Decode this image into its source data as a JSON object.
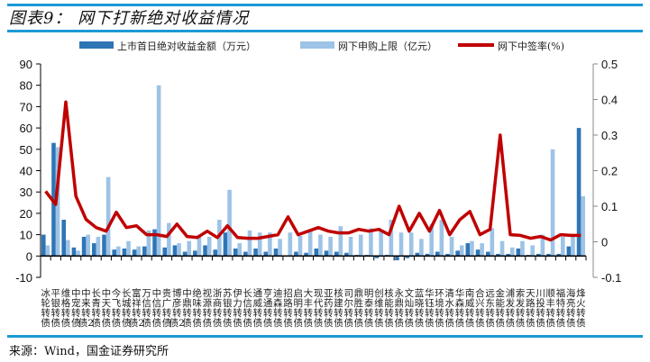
{
  "header": {
    "title": "图表9： 网下打新绝对收益情况"
  },
  "footer": {
    "source": "来源：Wind，国金证券研究所"
  },
  "colors": {
    "rule": "#1a9ad6",
    "dark_bar": "#2e75b6",
    "light_bar": "#9dc3e6",
    "line": "#c00000"
  },
  "chart_data": {
    "type": "bar+line",
    "title": "网下打新绝对收益情况",
    "legend": [
      {
        "name": "上市首日绝对收益金额（万元）",
        "type": "bar",
        "color": "#2e75b6",
        "axis": "left"
      },
      {
        "name": "网下申购上限（亿元）",
        "type": "bar",
        "color": "#9dc3e6",
        "axis": "left"
      },
      {
        "name": "网下中签率(%)",
        "type": "line",
        "color": "#c00000",
        "axis": "right"
      }
    ],
    "legend_position": "top",
    "grid": false,
    "left_axis": {
      "ylim": [
        -10,
        90
      ],
      "ticks": [
        -10,
        0,
        10,
        20,
        30,
        40,
        50,
        60,
        70,
        80,
        90
      ]
    },
    "right_axis": {
      "ylim": [
        -0.1,
        0.5
      ],
      "ticks": [
        "-0.1",
        "0",
        "0.1",
        "0.2",
        "0.3",
        "0.4",
        "0.5"
      ]
    },
    "categories": [
      "冰轮转债",
      "平银转债",
      "维格转债",
      "中宠转债",
      "中来转债2",
      "长青转债",
      "中天转债",
      "今飞转债",
      "长城转债",
      "富祥转债2",
      "万信转债",
      "中信转债",
      "贵广转债",
      "博彦转债2",
      "中鼎转债",
      "绝味转债",
      "视源转债",
      "浙商转债",
      "苏银转债",
      "伊力转债",
      "长信转债",
      "通威转债",
      "亨通转债",
      "迪森转债",
      "招路转债",
      "启明转债",
      "大丰转债",
      "现代转债",
      "亚药转债",
      "核建转债",
      "司尔转债",
      "鼎胜转债",
      "明泰转债",
      "创维转债",
      "核能转债",
      "永鼎转债",
      "文灿转债",
      "蓝晓转债",
      "华钰转债",
      "环境转债",
      "清水转债",
      "华森转债",
      "南威转债",
      "合兴转债",
      "远东转债",
      "金能转债",
      "浦发转债",
      "索发转债",
      "天路转债",
      "川投转债",
      "顺丰转债",
      "福特转债",
      "海亮转债",
      "烽火转债"
    ],
    "series": [
      {
        "name": "上市首日绝对收益金额（万元）",
        "values": [
          10,
          53,
          17,
          4,
          9,
          6,
          10,
          3,
          3.5,
          3,
          4.5,
          12.5,
          4,
          5,
          2,
          2.5,
          5,
          3,
          11,
          3.5,
          2,
          3.5,
          2,
          3.5,
          0,
          2,
          1.5,
          3.5,
          2.5,
          2,
          1.5,
          0.5,
          0.5,
          -1,
          0.5,
          -2,
          -1,
          1.5,
          1,
          2,
          1,
          2.5,
          6,
          3,
          2,
          1,
          1,
          3.5,
          0.5,
          1,
          1,
          1,
          4.5,
          60
        ]
      },
      {
        "name": "网下申购上限（亿元）",
        "values": [
          5,
          51,
          7.5,
          2.5,
          10,
          9,
          37,
          4.5,
          7,
          4.5,
          12,
          80,
          15.5,
          6,
          7,
          10,
          9,
          17,
          31,
          6,
          12,
          11,
          11,
          8,
          11,
          9.5,
          12,
          10,
          9,
          14,
          9,
          10,
          13,
          12,
          17,
          11,
          11,
          8,
          15,
          17,
          9,
          5,
          7,
          6,
          13,
          7,
          4,
          7,
          5,
          10,
          50,
          9,
          9,
          28
        ]
      },
      {
        "name": "网下中签率(%)",
        "axis": "right",
        "values": [
          0.142,
          0.105,
          0.393,
          0.128,
          0.063,
          0.04,
          0.03,
          0.083,
          0.04,
          0.045,
          0.02,
          0.02,
          0.015,
          0.05,
          0.015,
          0.012,
          0.03,
          0.012,
          0.045,
          0.012,
          0.01,
          0.01,
          0.015,
          0.02,
          0.07,
          0.02,
          0.03,
          0.04,
          0.03,
          0.025,
          0.025,
          0.035,
          0.03,
          0.035,
          0.02,
          0.1,
          0.03,
          0.08,
          0.03,
          0.088,
          0.02,
          0.062,
          0.085,
          0.02,
          0.035,
          0.3,
          0.02,
          0.018,
          0.01,
          0.015,
          0.005,
          0.02,
          0.018,
          0.018
        ]
      }
    ]
  }
}
